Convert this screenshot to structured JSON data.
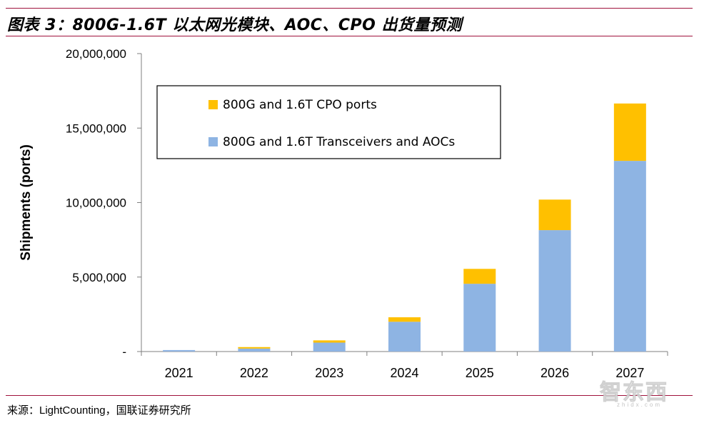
{
  "figure": {
    "title": "图表 3：800G-1.6T 以太网光模块、AOC、CPO 出货量预测",
    "source": "来源：LightCounting，国联证券研究所"
  },
  "watermark": {
    "text": "智东西",
    "sub": "zhidx.com"
  },
  "colors": {
    "accent_rule": "#a0123c",
    "cpo": "#ffc000",
    "transceivers": "#8eb4e3",
    "axis": "#7f7f7f"
  },
  "chart_data": {
    "type": "bar",
    "stacked": true,
    "title": "",
    "xlabel": "",
    "ylabel": "Shipments (ports)",
    "ylim": [
      0,
      20000000
    ],
    "yticks": [
      0,
      5000000,
      10000000,
      15000000,
      20000000
    ],
    "ytick_labels": [
      "-",
      "5,000,000",
      "10,000,000",
      "15,000,000",
      "20,000,000"
    ],
    "categories": [
      "2021",
      "2022",
      "2023",
      "2024",
      "2025",
      "2026",
      "2027"
    ],
    "legend_position": "top-left",
    "series": [
      {
        "name": "800G and 1.6T Transceivers and AOCs",
        "color": "#8eb4e3",
        "values": [
          100000,
          200000,
          600000,
          2000000,
          4550000,
          8150000,
          12800000
        ]
      },
      {
        "name": "800G and 1.6T CPO ports",
        "color": "#ffc000",
        "values": [
          0,
          100000,
          150000,
          300000,
          1000000,
          2050000,
          3850000
        ]
      }
    ],
    "legend_order": [
      1,
      0
    ]
  }
}
